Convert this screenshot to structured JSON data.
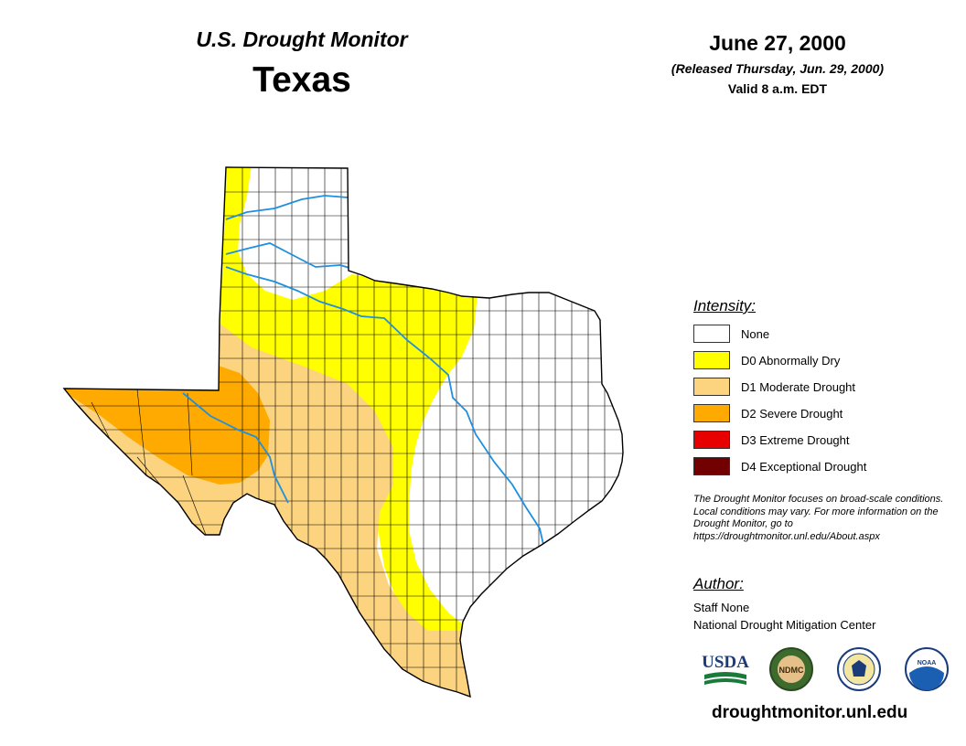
{
  "header": {
    "title": "U.S. Drought Monitor",
    "state": "Texas",
    "date": "June 27, 2000",
    "released": "(Released Thursday, Jun. 29, 2000)",
    "valid": "Valid 8 a.m. EDT"
  },
  "legend": {
    "title": "Intensity:",
    "items": [
      {
        "label": "None",
        "color": "#ffffff"
      },
      {
        "label": "D0 Abnormally Dry",
        "color": "#ffff00"
      },
      {
        "label": "D1 Moderate Drought",
        "color": "#fcd37f"
      },
      {
        "label": "D2 Severe Drought",
        "color": "#ffaa00"
      },
      {
        "label": "D3 Extreme Drought",
        "color": "#e60000"
      },
      {
        "label": "D4 Exceptional Drought",
        "color": "#730000"
      }
    ]
  },
  "note": "The Drought Monitor focuses on broad-scale conditions. Local conditions may vary. For more information on the Drought Monitor, go to https://droughtmonitor.unl.edu/About.aspx",
  "author": {
    "title": "Author:",
    "name": "Staff None",
    "org": "National Drought Mitigation Center"
  },
  "logos": [
    {
      "name": "usda-logo",
      "text": "USDA"
    },
    {
      "name": "ndmc-logo",
      "text": "NDMC"
    },
    {
      "name": "doc-seal-logo",
      "text": ""
    },
    {
      "name": "noaa-logo",
      "text": "NOAA"
    }
  ],
  "url": "droughtmonitor.unl.edu",
  "map": {
    "region": "Texas",
    "drought_areas": [
      {
        "category": "D0 Abnormally Dry",
        "color": "#ffff00"
      },
      {
        "category": "D1 Moderate Drought",
        "color": "#fcd37f"
      },
      {
        "category": "D2 Severe Drought",
        "color": "#ffaa00"
      }
    ],
    "county_line_color": "#000000",
    "river_color": "#1f8fe0"
  }
}
